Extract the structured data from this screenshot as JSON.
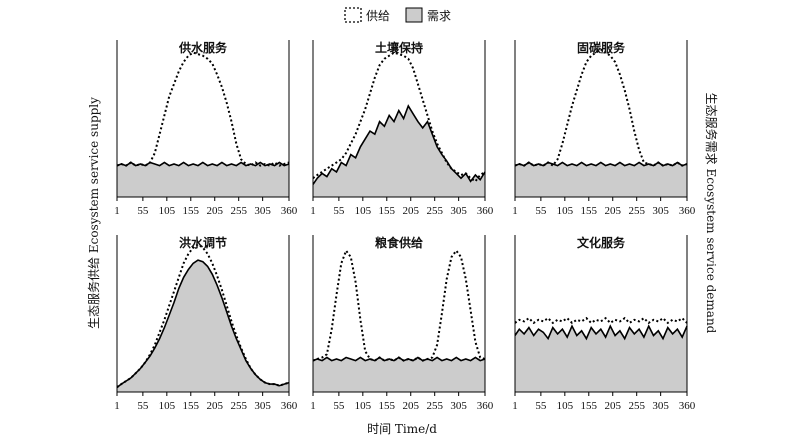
{
  "legend": {
    "supply_label": "供给",
    "demand_label": "需求",
    "colors": {
      "supply_line": "#000000",
      "demand_fill": "#cccccc",
      "demand_line": "#000000"
    }
  },
  "axes": {
    "ylabel_left": "生态服务供给 Ecosystem service supply",
    "ylabel_right": "生态服务需求 Ecosystem service demand",
    "xlabel": "时间 Time/d",
    "xticks": [
      "1",
      "55",
      "105",
      "155",
      "205",
      "255",
      "305",
      "360"
    ]
  },
  "chart_data": [
    {
      "type": "area",
      "title": "供水服务",
      "x": [
        1,
        10,
        20,
        30,
        40,
        50,
        60,
        70,
        80,
        90,
        100,
        110,
        120,
        130,
        140,
        150,
        160,
        170,
        180,
        190,
        200,
        210,
        220,
        230,
        240,
        250,
        260,
        270,
        280,
        290,
        300,
        310,
        320,
        330,
        340,
        350,
        360
      ],
      "supply": [
        0.2,
        0.21,
        0.2,
        0.22,
        0.2,
        0.21,
        0.2,
        0.22,
        0.28,
        0.4,
        0.52,
        0.64,
        0.72,
        0.8,
        0.86,
        0.9,
        0.92,
        0.91,
        0.9,
        0.88,
        0.85,
        0.78,
        0.7,
        0.6,
        0.48,
        0.34,
        0.24,
        0.21,
        0.2,
        0.22,
        0.2,
        0.21,
        0.2,
        0.22,
        0.2,
        0.21,
        0.22
      ],
      "demand": [
        0.2,
        0.21,
        0.2,
        0.22,
        0.2,
        0.21,
        0.2,
        0.22,
        0.21,
        0.2,
        0.22,
        0.2,
        0.21,
        0.2,
        0.22,
        0.2,
        0.21,
        0.2,
        0.22,
        0.2,
        0.21,
        0.2,
        0.22,
        0.2,
        0.21,
        0.2,
        0.22,
        0.2,
        0.21,
        0.2,
        0.22,
        0.2,
        0.21,
        0.2,
        0.22,
        0.2,
        0.21
      ]
    },
    {
      "type": "area",
      "title": "土壤保持",
      "x": [
        1,
        10,
        20,
        30,
        40,
        50,
        60,
        70,
        80,
        90,
        100,
        110,
        120,
        130,
        140,
        150,
        160,
        170,
        180,
        190,
        200,
        210,
        220,
        230,
        240,
        250,
        260,
        270,
        280,
        290,
        300,
        310,
        320,
        330,
        340,
        350,
        360
      ],
      "supply": [
        0.12,
        0.14,
        0.16,
        0.18,
        0.2,
        0.22,
        0.24,
        0.28,
        0.34,
        0.4,
        0.48,
        0.56,
        0.66,
        0.76,
        0.84,
        0.88,
        0.9,
        0.92,
        0.91,
        0.9,
        0.88,
        0.82,
        0.72,
        0.62,
        0.52,
        0.42,
        0.34,
        0.28,
        0.22,
        0.18,
        0.16,
        0.14,
        0.15,
        0.12,
        0.1,
        0.14,
        0.16
      ],
      "demand": [
        0.08,
        0.12,
        0.15,
        0.13,
        0.18,
        0.16,
        0.22,
        0.2,
        0.27,
        0.25,
        0.32,
        0.37,
        0.42,
        0.4,
        0.48,
        0.45,
        0.52,
        0.48,
        0.55,
        0.5,
        0.58,
        0.53,
        0.48,
        0.44,
        0.48,
        0.4,
        0.32,
        0.27,
        0.23,
        0.18,
        0.15,
        0.12,
        0.15,
        0.1,
        0.14,
        0.11,
        0.16
      ]
    },
    {
      "type": "area",
      "title": "固碳服务",
      "x": [
        1,
        10,
        20,
        30,
        40,
        50,
        60,
        70,
        80,
        90,
        100,
        110,
        120,
        130,
        140,
        150,
        160,
        170,
        180,
        190,
        200,
        210,
        220,
        230,
        240,
        250,
        260,
        270,
        280,
        290,
        300,
        310,
        320,
        330,
        340,
        350,
        360
      ],
      "supply": [
        0.2,
        0.21,
        0.2,
        0.22,
        0.2,
        0.21,
        0.2,
        0.22,
        0.2,
        0.24,
        0.34,
        0.46,
        0.58,
        0.68,
        0.78,
        0.86,
        0.9,
        0.92,
        0.94,
        0.92,
        0.9,
        0.86,
        0.78,
        0.68,
        0.56,
        0.42,
        0.3,
        0.22,
        0.21,
        0.2,
        0.22,
        0.2,
        0.21,
        0.2,
        0.22,
        0.2,
        0.21
      ],
      "demand": [
        0.2,
        0.21,
        0.2,
        0.22,
        0.2,
        0.21,
        0.2,
        0.22,
        0.21,
        0.2,
        0.22,
        0.2,
        0.21,
        0.2,
        0.22,
        0.2,
        0.21,
        0.2,
        0.22,
        0.2,
        0.21,
        0.2,
        0.22,
        0.2,
        0.21,
        0.2,
        0.22,
        0.2,
        0.21,
        0.2,
        0.22,
        0.2,
        0.21,
        0.2,
        0.22,
        0.2,
        0.21
      ]
    },
    {
      "type": "area",
      "title": "洪水调节",
      "x": [
        1,
        10,
        20,
        30,
        40,
        50,
        60,
        70,
        80,
        90,
        100,
        110,
        120,
        130,
        140,
        150,
        160,
        170,
        180,
        190,
        200,
        210,
        220,
        230,
        240,
        250,
        260,
        270,
        280,
        290,
        300,
        310,
        320,
        330,
        340,
        350,
        360
      ],
      "supply": [
        0.03,
        0.05,
        0.07,
        0.09,
        0.12,
        0.15,
        0.19,
        0.24,
        0.3,
        0.38,
        0.46,
        0.55,
        0.64,
        0.73,
        0.82,
        0.88,
        0.92,
        0.94,
        0.92,
        0.88,
        0.82,
        0.74,
        0.65,
        0.55,
        0.45,
        0.36,
        0.28,
        0.21,
        0.15,
        0.11,
        0.08,
        0.06,
        0.05,
        0.05,
        0.04,
        0.05,
        0.06
      ],
      "demand": [
        0.03,
        0.05,
        0.07,
        0.09,
        0.12,
        0.15,
        0.19,
        0.23,
        0.28,
        0.34,
        0.41,
        0.49,
        0.57,
        0.66,
        0.73,
        0.78,
        0.82,
        0.84,
        0.83,
        0.8,
        0.75,
        0.68,
        0.6,
        0.51,
        0.42,
        0.34,
        0.27,
        0.2,
        0.15,
        0.11,
        0.08,
        0.06,
        0.05,
        0.05,
        0.04,
        0.05,
        0.06
      ]
    },
    {
      "type": "area",
      "title": "粮食供给",
      "x": [
        1,
        10,
        20,
        30,
        40,
        50,
        60,
        70,
        80,
        90,
        100,
        110,
        120,
        130,
        140,
        150,
        160,
        170,
        180,
        190,
        200,
        210,
        220,
        230,
        240,
        250,
        260,
        270,
        280,
        290,
        300,
        310,
        320,
        330,
        340,
        350,
        360
      ],
      "supply": [
        0.2,
        0.21,
        0.22,
        0.24,
        0.4,
        0.62,
        0.82,
        0.9,
        0.86,
        0.7,
        0.46,
        0.26,
        0.21,
        0.2,
        0.22,
        0.2,
        0.21,
        0.2,
        0.22,
        0.2,
        0.21,
        0.2,
        0.22,
        0.2,
        0.21,
        0.22,
        0.3,
        0.5,
        0.72,
        0.86,
        0.9,
        0.86,
        0.72,
        0.52,
        0.32,
        0.22,
        0.21
      ],
      "demand": [
        0.2,
        0.21,
        0.2,
        0.22,
        0.2,
        0.21,
        0.2,
        0.22,
        0.21,
        0.2,
        0.22,
        0.2,
        0.21,
        0.2,
        0.22,
        0.2,
        0.21,
        0.2,
        0.22,
        0.2,
        0.21,
        0.2,
        0.22,
        0.2,
        0.21,
        0.2,
        0.22,
        0.2,
        0.21,
        0.2,
        0.22,
        0.2,
        0.21,
        0.2,
        0.22,
        0.2,
        0.21
      ]
    },
    {
      "type": "area",
      "title": "文化服务",
      "x": [
        1,
        10,
        20,
        30,
        40,
        50,
        60,
        70,
        80,
        90,
        100,
        110,
        120,
        130,
        140,
        150,
        160,
        170,
        180,
        190,
        200,
        210,
        220,
        230,
        240,
        250,
        260,
        270,
        280,
        290,
        300,
        310,
        320,
        330,
        340,
        350,
        360
      ],
      "supply": [
        0.44,
        0.46,
        0.45,
        0.47,
        0.44,
        0.46,
        0.45,
        0.47,
        0.44,
        0.46,
        0.45,
        0.47,
        0.44,
        0.46,
        0.45,
        0.47,
        0.44,
        0.46,
        0.45,
        0.47,
        0.44,
        0.46,
        0.45,
        0.47,
        0.44,
        0.46,
        0.45,
        0.47,
        0.44,
        0.46,
        0.45,
        0.47,
        0.44,
        0.46,
        0.45,
        0.47,
        0.44
      ],
      "demand": [
        0.36,
        0.4,
        0.37,
        0.41,
        0.36,
        0.4,
        0.38,
        0.34,
        0.41,
        0.37,
        0.4,
        0.35,
        0.42,
        0.36,
        0.39,
        0.34,
        0.41,
        0.37,
        0.4,
        0.35,
        0.42,
        0.36,
        0.39,
        0.34,
        0.41,
        0.37,
        0.4,
        0.35,
        0.42,
        0.36,
        0.39,
        0.34,
        0.41,
        0.37,
        0.4,
        0.35,
        0.42
      ]
    }
  ]
}
